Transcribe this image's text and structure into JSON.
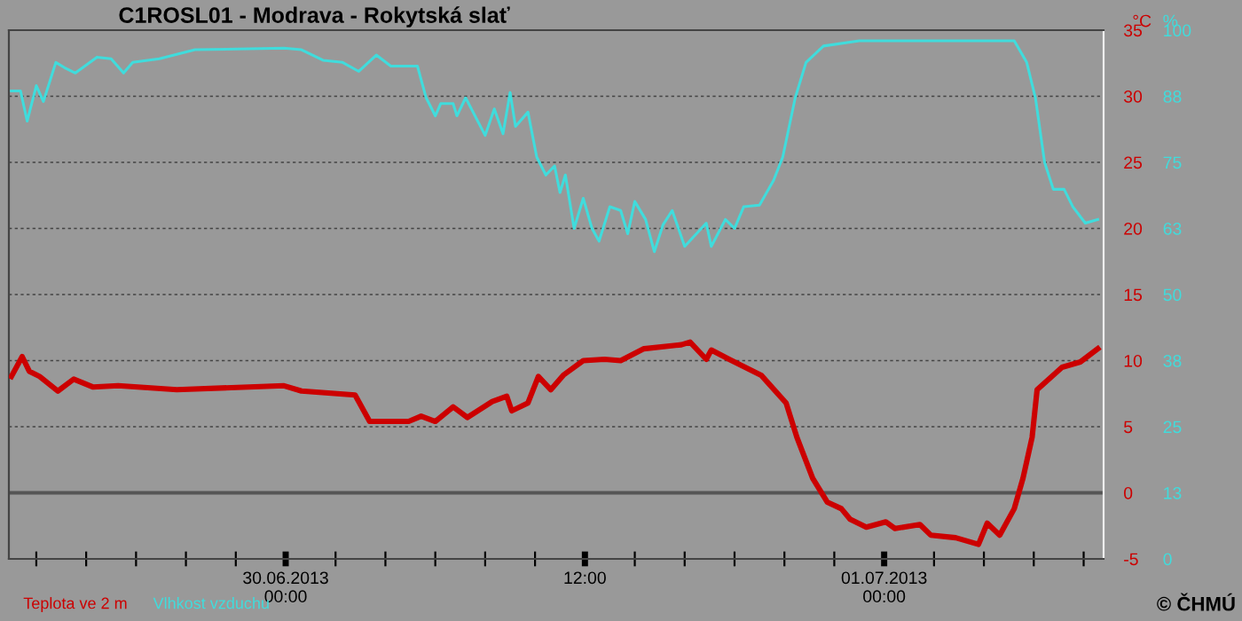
{
  "chart_data": {
    "type": "line",
    "title": "C1ROSL01 - Modrava - Rokytská slať",
    "ylabel": "°C",
    "y2label": "%",
    "xlim": [
      "2013-06-29T12:54",
      "2013-07-01T08:48"
    ],
    "xticks": [
      {
        "value": "2013-06-29T14:00",
        "label": null
      },
      {
        "value": "2013-06-29T16:00",
        "label": null
      },
      {
        "value": "2013-06-29T18:00",
        "label": null
      },
      {
        "value": "2013-06-29T20:00",
        "label": null
      },
      {
        "value": "2013-06-29T22:00",
        "label": null
      },
      {
        "value": "2013-06-30T00:00",
        "label": "30.06.2013\n00:00"
      },
      {
        "value": "2013-06-30T02:00",
        "label": null
      },
      {
        "value": "2013-06-30T04:00",
        "label": null
      },
      {
        "value": "2013-06-30T06:00",
        "label": null
      },
      {
        "value": "2013-06-30T08:00",
        "label": null
      },
      {
        "value": "2013-06-30T10:00",
        "label": null
      },
      {
        "value": "2013-06-30T12:00",
        "label": "12:00"
      },
      {
        "value": "2013-06-30T14:00",
        "label": null
      },
      {
        "value": "2013-06-30T16:00",
        "label": null
      },
      {
        "value": "2013-06-30T18:00",
        "label": null
      },
      {
        "value": "2013-06-30T20:00",
        "label": null
      },
      {
        "value": "2013-06-30T22:00",
        "label": null
      },
      {
        "value": "2013-07-01T00:00",
        "label": "01.07.2013\n00:00"
      },
      {
        "value": "2013-07-01T02:00",
        "label": null
      },
      {
        "value": "2013-07-01T04:00",
        "label": null
      },
      {
        "value": "2013-07-01T06:00",
        "label": null
      },
      {
        "value": "2013-07-01T08:00",
        "label": null
      }
    ],
    "ylim": [
      -5,
      35
    ],
    "yticks": [
      -5,
      0,
      5,
      10,
      15,
      20,
      25,
      30,
      35
    ],
    "y2lim": [
      0,
      100
    ],
    "y2ticks": [
      0,
      {
        "value": 12.5,
        "label": "13"
      },
      25,
      {
        "value": 37.5,
        "label": "38"
      },
      50,
      {
        "value": 62.5,
        "label": "63"
      },
      75,
      {
        "value": 87.5,
        "label": "88"
      },
      100
    ],
    "grid": "y",
    "legend": "bottom left",
    "ref_lines": [
      {
        "axis": "y",
        "value": 0,
        "color": "#555555"
      }
    ],
    "annotations": [
      "© ČHMÚ"
    ],
    "series": [
      {
        "name": "Teplota ve 2 m",
        "color": "#cc0000",
        "x": [
          "2013-06-29T13:00",
          "2013-06-29T13:26",
          "2013-06-29T13:43",
          "2013-06-29T14:08",
          "2013-06-29T14:52",
          "2013-06-29T15:30",
          "2013-06-29T16:17",
          "2013-06-29T17:17",
          "2013-06-29T19:38",
          "2013-06-29T23:56",
          "2013-06-30T00:38",
          "2013-06-30T02:47",
          "2013-06-30T03:22",
          "2013-06-30T04:56",
          "2013-06-30T05:26",
          "2013-06-30T06:00",
          "2013-06-30T06:43",
          "2013-06-30T07:17",
          "2013-06-30T08:17",
          "2013-06-30T08:52",
          "2013-06-30T09:04",
          "2013-06-30T09:43",
          "2013-06-30T10:08",
          "2013-06-30T10:38",
          "2013-06-30T11:08",
          "2013-06-30T11:56",
          "2013-06-30T12:47",
          "2013-06-30T13:26",
          "2013-06-30T14:22",
          "2013-06-30T15:52",
          "2013-06-30T16:13",
          "2013-06-30T16:52",
          "2013-06-30T17:04",
          "2013-06-30T17:47",
          "2013-06-30T19:04",
          "2013-06-30T20:04",
          "2013-06-30T20:30",
          "2013-06-30T21:08",
          "2013-06-30T21:43",
          "2013-06-30T22:17",
          "2013-06-30T22:38",
          "2013-06-30T23:17",
          "2013-07-01T00:04",
          "2013-07-01T00:26",
          "2013-07-01T01:26",
          "2013-07-01T01:52",
          "2013-07-01T02:52",
          "2013-07-01T03:47",
          "2013-07-01T04:08",
          "2013-07-01T04:38",
          "2013-07-01T05:13",
          "2013-07-01T05:34",
          "2013-07-01T05:56",
          "2013-07-01T06:08",
          "2013-07-01T07:08",
          "2013-07-01T07:52",
          "2013-07-01T08:34"
        ],
        "values": [
          8.8,
          10.3,
          9.2,
          8.8,
          7.7,
          8.6,
          8.0,
          8.1,
          7.8,
          8.1,
          7.7,
          7.4,
          5.4,
          5.4,
          5.8,
          5.4,
          6.5,
          5.7,
          6.9,
          7.3,
          6.2,
          6.8,
          8.8,
          7.8,
          8.9,
          10.0,
          10.1,
          10.0,
          10.9,
          11.2,
          11.4,
          10.1,
          10.8,
          10.1,
          8.9,
          6.8,
          4.2,
          1.1,
          -0.7,
          -1.2,
          -2.0,
          -2.6,
          -2.2,
          -2.7,
          -2.4,
          -3.2,
          -3.4,
          -3.9,
          -2.3,
          -3.2,
          -1.2,
          1.1,
          4.2,
          7.8,
          9.5,
          9.9,
          10.9
        ]
      },
      {
        "name": "Vlhkost vzduchu",
        "color": "#40dcdc",
        "axis": "y2",
        "x": [
          "2013-06-29T13:00",
          "2013-06-29T13:22",
          "2013-06-29T13:38",
          "2013-06-29T14:00",
          "2013-06-29T14:17",
          "2013-06-29T14:47",
          "2013-06-29T15:08",
          "2013-06-29T15:34",
          "2013-06-29T16:26",
          "2013-06-29T17:00",
          "2013-06-29T17:30",
          "2013-06-29T17:52",
          "2013-06-29T18:56",
          "2013-06-29T20:22",
          "2013-06-29T23:56",
          "2013-06-30T00:38",
          "2013-06-30T01:30",
          "2013-06-30T02:17",
          "2013-06-30T02:56",
          "2013-06-30T03:38",
          "2013-06-30T04:13",
          "2013-06-30T05:17",
          "2013-06-30T05:38",
          "2013-06-30T06:00",
          "2013-06-30T06:13",
          "2013-06-30T06:43",
          "2013-06-30T06:52",
          "2013-06-30T07:13",
          "2013-06-30T08:00",
          "2013-06-30T08:22",
          "2013-06-30T08:43",
          "2013-06-30T09:00",
          "2013-06-30T09:13",
          "2013-06-30T09:43",
          "2013-06-30T10:04",
          "2013-06-30T10:26",
          "2013-06-30T10:47",
          "2013-06-30T11:00",
          "2013-06-30T11:13",
          "2013-06-30T11:34",
          "2013-06-30T11:56",
          "2013-06-30T12:17",
          "2013-06-30T12:34",
          "2013-06-30T13:00",
          "2013-06-30T13:26",
          "2013-06-30T13:43",
          "2013-06-30T14:00",
          "2013-06-30T14:26",
          "2013-06-30T14:47",
          "2013-06-30T15:08",
          "2013-06-30T15:30",
          "2013-06-30T16:00",
          "2013-06-30T16:52",
          "2013-06-30T17:04",
          "2013-06-30T17:38",
          "2013-06-30T18:00",
          "2013-06-30T18:22",
          "2013-06-30T19:00",
          "2013-06-30T19:34",
          "2013-06-30T19:56",
          "2013-06-30T20:26",
          "2013-06-30T20:52",
          "2013-06-30T21:34",
          "2013-06-30T23:00",
          "2013-07-01T05:13",
          "2013-07-01T05:43",
          "2013-07-01T06:04",
          "2013-07-01T06:26",
          "2013-07-01T06:47",
          "2013-07-01T07:13",
          "2013-07-01T07:34",
          "2013-07-01T08:04",
          "2013-07-01T08:34"
        ],
        "values": [
          88.5,
          88.5,
          82.8,
          89.5,
          86.5,
          93.9,
          92.9,
          91.9,
          94.9,
          94.6,
          91.9,
          93.9,
          94.6,
          96.3,
          96.6,
          96.3,
          94.3,
          93.9,
          92.2,
          95.3,
          93.2,
          93.2,
          87.2,
          83.8,
          86.1,
          86.1,
          83.8,
          87.2,
          80.1,
          85.1,
          80.4,
          88.2,
          81.8,
          84.5,
          76.0,
          72.6,
          74.3,
          69.3,
          72.6,
          62.5,
          68.2,
          62.5,
          60.1,
          66.6,
          65.9,
          61.5,
          67.6,
          64.2,
          58.1,
          63.2,
          65.9,
          59.1,
          63.5,
          59.1,
          64.2,
          62.5,
          66.6,
          66.9,
          71.6,
          76.0,
          87.2,
          93.9,
          97.0,
          98.0,
          98.0,
          93.9,
          87.2,
          75.0,
          69.9,
          69.9,
          66.6,
          63.5,
          64.2
        ]
      }
    ]
  }
}
